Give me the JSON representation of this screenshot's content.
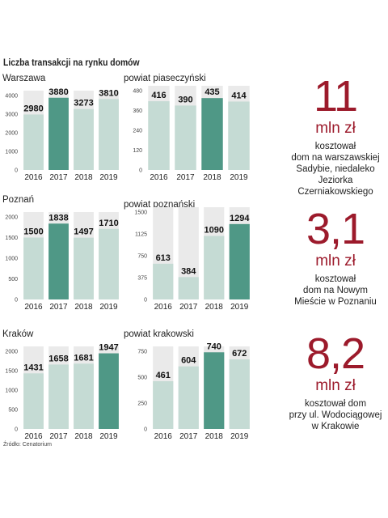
{
  "title": "Liczba transakcji na rynku domów",
  "source": "Źródło: Cenatorium",
  "colors": {
    "bar": "#c5dbd4",
    "highlight": "#4f9886",
    "bg_band": "#eaeaea",
    "accent": "#9c1a2b"
  },
  "chart_data": [
    {
      "type": "bar",
      "title": "Warszawa",
      "categories": [
        "2016",
        "2017",
        "2018",
        "2019"
      ],
      "values": [
        2980,
        3880,
        3273,
        3810
      ],
      "highlight": 1,
      "ylim": [
        0,
        4000
      ],
      "yticks": [
        "0",
        "1000",
        "2000",
        "3000",
        "4000"
      ]
    },
    {
      "type": "bar",
      "title": "powiat piaseczyński",
      "categories": [
        "2016",
        "2017",
        "2018",
        "2019"
      ],
      "values": [
        416,
        390,
        435,
        414
      ],
      "highlight": 2,
      "ylim": [
        0,
        480
      ],
      "yticks": [
        "0",
        "120",
        "240",
        "360",
        "480"
      ]
    },
    {
      "type": "bar",
      "title": "Poznań",
      "categories": [
        "2016",
        "2017",
        "2018",
        "2019"
      ],
      "values": [
        1500,
        1838,
        1497,
        1710
      ],
      "highlight": 1,
      "ylim": [
        0,
        2000
      ],
      "yticks": [
        "0",
        "500",
        "1000",
        "1500",
        "2000"
      ]
    },
    {
      "type": "bar",
      "title": "powiat poznański",
      "categories": [
        "2016",
        "2017",
        "2018",
        "2019"
      ],
      "values": [
        613,
        384,
        1090,
        1294
      ],
      "highlight": 3,
      "ylim": [
        0,
        1500
      ],
      "yticks": [
        "0",
        "375",
        "750",
        "1125",
        "1500"
      ]
    },
    {
      "type": "bar",
      "title": "Kraków",
      "categories": [
        "2016",
        "2017",
        "2018",
        "2019"
      ],
      "values": [
        1431,
        1658,
        1681,
        1947
      ],
      "highlight": 3,
      "ylim": [
        0,
        2000
      ],
      "yticks": [
        "0",
        "500",
        "1000",
        "1500",
        "2000"
      ]
    },
    {
      "type": "bar",
      "title": "powiat krakowski",
      "categories": [
        "2016",
        "2017",
        "2018",
        "2019"
      ],
      "values": [
        461,
        604,
        740,
        672
      ],
      "highlight": 2,
      "ylim": [
        0,
        750
      ],
      "yticks": [
        "0",
        "250",
        "500",
        "750"
      ]
    }
  ],
  "stats": [
    {
      "value": "11",
      "unit": "mln zł",
      "lines": [
        "kosztował",
        "dom na warszawskiej",
        "Sadybie, niedaleko",
        "Jeziorka Czerniakowskiego"
      ]
    },
    {
      "value": "3,1",
      "unit": "mln zł",
      "lines": [
        "kosztował",
        "dom na Nowym",
        "Mieście w Poznaniu"
      ]
    },
    {
      "value": "8,2",
      "unit": "mln zł",
      "lines": [
        "kosztował dom",
        "przy ul. Wodociągowej",
        "w Krakowie"
      ]
    }
  ]
}
